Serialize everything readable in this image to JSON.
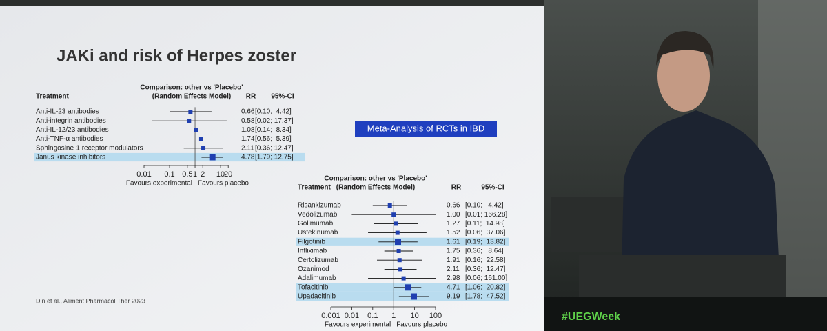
{
  "slide": {
    "title": "JAKi and risk of Herpes zoster",
    "box_label": "Meta-Analysis of RCTs in IBD",
    "citation": "Din et al., Aliment Pharmacol Ther 2023",
    "hashtag": "#UEGWeek"
  },
  "chart_data": [
    {
      "type": "forest",
      "header_treatment": "Treatment",
      "header_comparison": "Comparison: other vs 'Placebo'",
      "header_model": "(Random Effects Model)",
      "header_rr": "RR",
      "header_ci": "95%-CI",
      "xlabel_left": "Favours experimental",
      "xlabel_right": "Favours placebo",
      "log_x": true,
      "color": "#1f3fb0",
      "highlight_color": "#b9dcef",
      "categories": [
        "Anti-IL-23 antibodies",
        "Anti-integrin antibodies",
        "Anti-IL-12/23 antibodies",
        "Anti-TNF-α antibodies",
        "Sphingosine-1 receptor modulators",
        "Janus kinase inhibitors"
      ],
      "values": [
        0.66,
        0.58,
        1.08,
        1.74,
        2.11,
        4.78
      ],
      "value_labels": [
        "0.66",
        "0.58",
        "1.08",
        "1.74",
        "2.11",
        "4.78"
      ],
      "lower": [
        0.1,
        0.02,
        0.14,
        0.56,
        0.36,
        1.79
      ],
      "upper": [
        4.42,
        17.37,
        8.34,
        5.39,
        12.47,
        12.75
      ],
      "ci_labels": [
        "[0.10;  4.42]",
        "[0.02; 17.37]",
        "[0.14;  8.34]",
        "[0.56;  5.39]",
        "[0.36; 12.47]",
        "[1.79; 12.75]"
      ],
      "highlighted": [
        false,
        false,
        false,
        false,
        false,
        true
      ],
      "xlim": [
        0.01,
        20
      ],
      "xticks": [
        0.01,
        0.1,
        0.5,
        1,
        2,
        10,
        20
      ]
    },
    {
      "type": "forest",
      "header_treatment": "Treatment",
      "header_comparison": "Comparison: other vs 'Placebo'",
      "header_model": "(Random Effects Model)",
      "header_rr": "RR",
      "header_ci": "95%-CI",
      "xlabel_left": "Favours experimental",
      "xlabel_right": "Favours placebo",
      "log_x": true,
      "color": "#1f3fb0",
      "highlight_color": "#b9dcef",
      "categories": [
        "Risankizumab",
        "Vedolizumab",
        "Golimumab",
        "Ustekinumab",
        "Filgotinib",
        "Infliximab",
        "Certolizumab",
        "Ozanimod",
        "Adalimumab",
        "Tofacitinib",
        "Upadacitinib"
      ],
      "values": [
        0.66,
        1.0,
        1.27,
        1.52,
        1.61,
        1.75,
        1.91,
        2.11,
        2.98,
        4.71,
        9.19
      ],
      "value_labels": [
        "0.66",
        "1.00",
        "1.27",
        "1.52",
        "1.61",
        "1.75",
        "1.91",
        "2.11",
        "2.98",
        "4.71",
        "9.19"
      ],
      "lower": [
        0.1,
        0.01,
        0.11,
        0.06,
        0.19,
        0.36,
        0.16,
        0.36,
        0.06,
        1.06,
        1.78
      ],
      "upper": [
        4.42,
        166.28,
        14.98,
        37.06,
        13.82,
        8.64,
        22.58,
        12.47,
        161.0,
        20.82,
        47.52
      ],
      "ci_labels": [
        "[0.10;   4.42]",
        "[0.01; 166.28]",
        "[0.11;  14.98]",
        "[0.06;  37.06]",
        "[0.19;  13.82]",
        "[0.36;   8.64]",
        "[0.16;  22.58]",
        "[0.36;  12.47]",
        "[0.06; 161.00]",
        "[1.06;  20.82]",
        "[1.78;  47.52]"
      ],
      "highlighted": [
        false,
        false,
        false,
        false,
        true,
        false,
        false,
        false,
        false,
        true,
        true
      ],
      "xlim": [
        0.001,
        100
      ],
      "xticks": [
        0.001,
        0.01,
        0.1,
        1,
        10,
        100
      ]
    }
  ]
}
